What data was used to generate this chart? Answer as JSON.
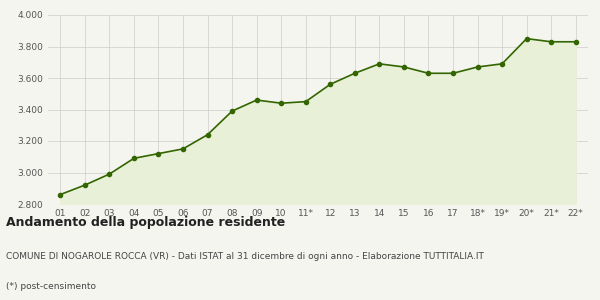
{
  "x_labels": [
    "01",
    "02",
    "03",
    "04",
    "05",
    "06",
    "07",
    "08",
    "09",
    "10",
    "11*",
    "12",
    "13",
    "14",
    "15",
    "16",
    "17",
    "18*",
    "19*",
    "20*",
    "21*",
    "22*"
  ],
  "y_values": [
    2860,
    2920,
    2990,
    3090,
    3120,
    3150,
    3240,
    3390,
    3460,
    3440,
    3450,
    3560,
    3630,
    3690,
    3670,
    3630,
    3630,
    3670,
    3690,
    3850,
    3830,
    3830
  ],
  "ylim": [
    2800,
    4000
  ],
  "yticks": [
    2800,
    3000,
    3200,
    3400,
    3600,
    3800,
    4000
  ],
  "line_color": "#336600",
  "fill_color": "#e8f0d8",
  "marker_color": "#336600",
  "bg_color": "#f5f5f0",
  "grid_color": "#cccccc",
  "title": "Andamento della popolazione residente",
  "subtitle": "COMUNE DI NOGAROLE ROCCA (VR) - Dati ISTAT al 31 dicembre di ogni anno - Elaborazione TUTTITALIA.IT",
  "footnote": "(*) post-censimento",
  "title_fontsize": 9,
  "subtitle_fontsize": 6.5,
  "footnote_fontsize": 6.5,
  "tick_fontsize": 6.5,
  "axis_label_color": "#555555"
}
